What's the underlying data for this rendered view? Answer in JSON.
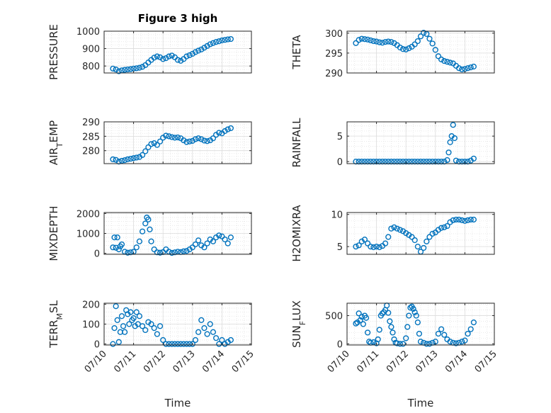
{
  "figure": {
    "title": "Figure 3 high",
    "xlabel": "Time",
    "marker_color": "#0072BD",
    "grid": true,
    "minor_grid": true
  },
  "chart_data": [
    {
      "type": "scatter",
      "marker": "circle",
      "ylabel": "PRESSURE",
      "xlim": [
        "07/10",
        "07/15"
      ],
      "xticks": [
        "07/10",
        "07/11",
        "07/12",
        "07/13",
        "07/14",
        "07/15"
      ],
      "ylim": [
        760,
        1000
      ],
      "yticks": [
        800,
        900,
        1000
      ],
      "x_days": [
        0.3,
        0.4,
        0.5,
        0.6,
        0.7,
        0.8,
        0.9,
        1.0,
        1.1,
        1.2,
        1.3,
        1.4,
        1.5,
        1.6,
        1.7,
        1.8,
        1.9,
        2.0,
        2.1,
        2.2,
        2.3,
        2.4,
        2.5,
        2.6,
        2.7,
        2.8,
        2.9,
        3.0,
        3.1,
        3.2,
        3.3,
        3.4,
        3.5,
        3.6,
        3.7,
        3.8,
        3.9,
        4.0,
        4.1,
        4.2,
        4.3
      ],
      "y": [
        785,
        780,
        770,
        775,
        778,
        780,
        782,
        785,
        787,
        790,
        795,
        805,
        820,
        835,
        848,
        855,
        850,
        840,
        845,
        855,
        860,
        850,
        835,
        830,
        840,
        855,
        862,
        870,
        880,
        888,
        895,
        905,
        915,
        925,
        932,
        938,
        942,
        947,
        950,
        953,
        955
      ]
    },
    {
      "type": "scatter",
      "marker": "circle",
      "ylabel": "THETA",
      "xlim": [
        "07/10",
        "07/15"
      ],
      "xticks": [
        "07/10",
        "07/11",
        "07/12",
        "07/13",
        "07/14",
        "07/15"
      ],
      "ylim": [
        290,
        300.5
      ],
      "yticks": [
        290,
        295,
        300
      ],
      "x_days": [
        0.3,
        0.4,
        0.5,
        0.6,
        0.7,
        0.8,
        0.9,
        1.0,
        1.1,
        1.2,
        1.3,
        1.4,
        1.5,
        1.6,
        1.7,
        1.8,
        1.9,
        2.0,
        2.1,
        2.2,
        2.3,
        2.4,
        2.5,
        2.6,
        2.7,
        2.8,
        2.9,
        3.0,
        3.1,
        3.2,
        3.3,
        3.4,
        3.5,
        3.6,
        3.7,
        3.8,
        3.9,
        4.0,
        4.1,
        4.2,
        4.3
      ],
      "y": [
        297.5,
        298.3,
        298.6,
        298.5,
        298.4,
        298.2,
        298.0,
        297.9,
        297.7,
        297.6,
        297.8,
        297.9,
        297.8,
        297.5,
        297.0,
        296.4,
        296.0,
        295.9,
        296.2,
        296.6,
        297.2,
        298.0,
        299.2,
        300.1,
        299.8,
        298.6,
        297.4,
        295.8,
        294.2,
        293.4,
        293.0,
        292.8,
        292.6,
        292.4,
        291.8,
        291.2,
        290.9,
        291.0,
        291.2,
        291.4,
        291.6
      ]
    },
    {
      "type": "scatter",
      "marker": "circle",
      "ylabel": "AIR_TEMP",
      "xlim": [
        "07/10",
        "07/15"
      ],
      "xticks": [
        "07/10",
        "07/11",
        "07/12",
        "07/13",
        "07/14",
        "07/15"
      ],
      "ylim": [
        275.5,
        290
      ],
      "yticks": [
        280,
        285,
        290
      ],
      "x_days": [
        0.3,
        0.4,
        0.5,
        0.6,
        0.7,
        0.8,
        0.9,
        1.0,
        1.1,
        1.2,
        1.3,
        1.4,
        1.5,
        1.6,
        1.7,
        1.8,
        1.9,
        2.0,
        2.1,
        2.2,
        2.3,
        2.4,
        2.5,
        2.6,
        2.7,
        2.8,
        2.9,
        3.0,
        3.1,
        3.2,
        3.3,
        3.4,
        3.5,
        3.6,
        3.7,
        3.8,
        3.9,
        4.0,
        4.1,
        4.2,
        4.3
      ],
      "y": [
        277.0,
        276.8,
        276.2,
        276.5,
        276.7,
        277.0,
        277.2,
        277.4,
        277.6,
        277.8,
        278.5,
        279.8,
        281.2,
        282.3,
        282.6,
        282.0,
        283.2,
        284.5,
        285.2,
        285.0,
        284.7,
        284.5,
        284.6,
        284.3,
        283.6,
        283.0,
        283.2,
        283.4,
        284.0,
        284.3,
        284.0,
        283.5,
        283.3,
        283.6,
        284.3,
        285.5,
        286.2,
        286.0,
        286.8,
        287.4,
        287.8
      ]
    },
    {
      "type": "scatter",
      "marker": "circle",
      "ylabel": "RAINFALL",
      "xlim": [
        "07/10",
        "07/15"
      ],
      "xticks": [
        "07/10",
        "07/11",
        "07/12",
        "07/13",
        "07/14",
        "07/15"
      ],
      "ylim": [
        -0.4,
        7.8
      ],
      "yticks": [
        0,
        5
      ],
      "x_days": [
        0.3,
        0.4,
        0.5,
        0.6,
        0.7,
        0.8,
        0.9,
        1.0,
        1.1,
        1.2,
        1.3,
        1.4,
        1.5,
        1.6,
        1.7,
        1.8,
        1.9,
        2.0,
        2.1,
        2.2,
        2.3,
        2.4,
        2.5,
        2.6,
        2.7,
        2.8,
        2.9,
        3.0,
        3.1,
        3.2,
        3.3,
        3.4,
        3.45,
        3.5,
        3.55,
        3.6,
        3.65,
        3.7,
        3.8,
        3.9,
        4.0,
        4.1,
        4.2,
        4.3
      ],
      "y": [
        0,
        0,
        0,
        0,
        0,
        0,
        0,
        0,
        0,
        0,
        0,
        0,
        0,
        0,
        0,
        0,
        0,
        0,
        0,
        0,
        0,
        0,
        0,
        0,
        0,
        0,
        0,
        0,
        0,
        0,
        0,
        0.3,
        1.8,
        3.8,
        5.0,
        7.2,
        4.6,
        0.2,
        0,
        0,
        0,
        0,
        0.2,
        0.6
      ]
    },
    {
      "type": "scatter",
      "marker": "circle",
      "ylabel": "MIXDEPTH",
      "xlim": [
        "07/10",
        "07/15"
      ],
      "xticks": [
        "07/10",
        "07/11",
        "07/12",
        "07/13",
        "07/14",
        "07/15"
      ],
      "ylim": [
        -50,
        2050
      ],
      "yticks": [
        0,
        1000,
        2000
      ],
      "x_days": [
        0.3,
        0.35,
        0.4,
        0.45,
        0.5,
        0.55,
        0.6,
        0.7,
        0.8,
        0.9,
        1.0,
        1.1,
        1.2,
        1.3,
        1.4,
        1.45,
        1.5,
        1.55,
        1.6,
        1.7,
        1.8,
        1.9,
        2.0,
        2.1,
        2.2,
        2.3,
        2.4,
        2.5,
        2.6,
        2.7,
        2.8,
        2.9,
        3.0,
        3.1,
        3.2,
        3.3,
        3.4,
        3.5,
        3.6,
        3.7,
        3.8,
        3.9,
        4.0,
        4.1,
        4.2,
        4.3
      ],
      "y": [
        300,
        800,
        280,
        800,
        200,
        350,
        450,
        80,
        30,
        50,
        80,
        300,
        600,
        1100,
        1500,
        1800,
        1700,
        1200,
        600,
        200,
        50,
        30,
        60,
        200,
        80,
        20,
        50,
        80,
        60,
        100,
        120,
        200,
        300,
        450,
        650,
        400,
        300,
        500,
        700,
        600,
        800,
        900,
        850,
        700,
        500,
        800
      ]
    },
    {
      "type": "scatter",
      "marker": "circle",
      "ylabel": "H2OMIXRA",
      "xlim": [
        "07/10",
        "07/15"
      ],
      "xticks": [
        "07/10",
        "07/11",
        "07/12",
        "07/13",
        "07/14",
        "07/15"
      ],
      "ylim": [
        3.8,
        10.3
      ],
      "yticks": [
        5,
        10
      ],
      "x_days": [
        0.3,
        0.4,
        0.5,
        0.6,
        0.7,
        0.8,
        0.9,
        1.0,
        1.1,
        1.2,
        1.3,
        1.4,
        1.5,
        1.6,
        1.7,
        1.8,
        1.9,
        2.0,
        2.1,
        2.2,
        2.3,
        2.4,
        2.5,
        2.6,
        2.7,
        2.8,
        2.9,
        3.0,
        3.1,
        3.2,
        3.3,
        3.4,
        3.5,
        3.6,
        3.7,
        3.8,
        3.9,
        4.0,
        4.1,
        4.2,
        4.3
      ],
      "y": [
        5.0,
        5.2,
        5.8,
        6.1,
        5.5,
        5.0,
        4.9,
        5.0,
        4.9,
        5.1,
        5.5,
        6.5,
        7.8,
        8.0,
        7.8,
        7.6,
        7.4,
        7.1,
        6.8,
        6.5,
        6.0,
        5.0,
        4.2,
        4.8,
        5.8,
        6.5,
        7.0,
        7.2,
        7.6,
        7.9,
        8.0,
        8.2,
        8.8,
        9.1,
        9.2,
        9.2,
        9.1,
        9.0,
        9.1,
        9.2,
        9.2
      ]
    },
    {
      "type": "scatter",
      "marker": "circle",
      "ylabel": "TERR_MSL",
      "xlim": [
        "07/10",
        "07/15"
      ],
      "xticks": [
        "07/10",
        "07/11",
        "07/12",
        "07/13",
        "07/14",
        "07/15"
      ],
      "ylim": [
        -5,
        205
      ],
      "yticks": [
        0,
        100,
        200
      ],
      "x_days": [
        0.3,
        0.35,
        0.4,
        0.45,
        0.5,
        0.55,
        0.6,
        0.65,
        0.7,
        0.75,
        0.8,
        0.85,
        0.9,
        0.95,
        1.0,
        1.05,
        1.1,
        1.15,
        1.2,
        1.3,
        1.4,
        1.5,
        1.6,
        1.7,
        1.8,
        1.9,
        2.0,
        2.1,
        2.2,
        2.3,
        2.4,
        2.5,
        2.6,
        2.7,
        2.8,
        2.9,
        3.0,
        3.1,
        3.2,
        3.3,
        3.4,
        3.5,
        3.6,
        3.7,
        3.8,
        3.9,
        4.0,
        4.1,
        4.2,
        4.3
      ],
      "y": [
        0,
        80,
        190,
        120,
        10,
        60,
        140,
        90,
        60,
        170,
        150,
        100,
        160,
        120,
        130,
        90,
        160,
        100,
        140,
        90,
        70,
        110,
        100,
        80,
        50,
        90,
        20,
        0,
        0,
        0,
        0,
        0,
        0,
        0,
        0,
        0,
        0,
        20,
        60,
        120,
        80,
        50,
        100,
        60,
        30,
        0,
        20,
        0,
        10,
        20
      ]
    },
    {
      "type": "scatter",
      "marker": "circle",
      "ylabel": "SUN_FLUX",
      "xlim": [
        "07/10",
        "07/15"
      ],
      "xticks": [
        "07/10",
        "07/11",
        "07/12",
        "07/13",
        "07/14",
        "07/15"
      ],
      "ylim": [
        -20,
        720
      ],
      "yticks": [
        0,
        500
      ],
      "x_days": [
        0.3,
        0.35,
        0.4,
        0.45,
        0.5,
        0.55,
        0.6,
        0.65,
        0.7,
        0.75,
        0.8,
        0.9,
        1.0,
        1.05,
        1.1,
        1.15,
        1.2,
        1.25,
        1.3,
        1.35,
        1.4,
        1.45,
        1.5,
        1.55,
        1.6,
        1.65,
        1.7,
        1.8,
        1.9,
        2.0,
        2.05,
        2.1,
        2.15,
        2.2,
        2.25,
        2.3,
        2.35,
        2.4,
        2.45,
        2.5,
        2.6,
        2.7,
        2.8,
        2.9,
        3.0,
        3.1,
        3.2,
        3.3,
        3.4,
        3.5,
        3.6,
        3.7,
        3.8,
        3.9,
        4.0,
        4.1,
        4.2,
        4.3
      ],
      "y": [
        360,
        380,
        540,
        420,
        480,
        350,
        500,
        460,
        200,
        40,
        20,
        30,
        10,
        80,
        250,
        500,
        540,
        560,
        600,
        680,
        550,
        400,
        300,
        200,
        80,
        20,
        10,
        0,
        0,
        100,
        300,
        500,
        640,
        660,
        620,
        560,
        500,
        380,
        180,
        40,
        20,
        0,
        0,
        20,
        40,
        180,
        260,
        160,
        80,
        40,
        20,
        10,
        20,
        40,
        60,
        180,
        260,
        380
      ]
    }
  ]
}
